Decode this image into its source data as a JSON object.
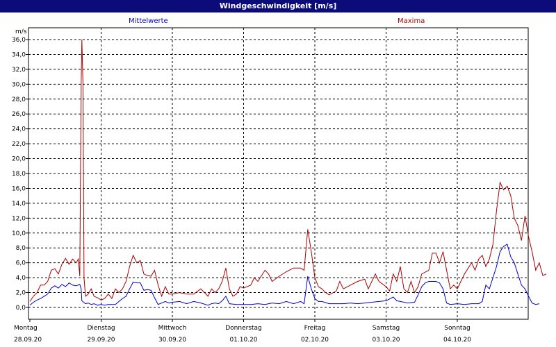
{
  "window": {
    "title": "Windgeschwindigkeit [m/s]"
  },
  "chart_data": {
    "type": "line",
    "title": "Windgeschwindigkeit [m/s]",
    "ylabel": "m/s",
    "ylim": [
      -1,
      37
    ],
    "yticks": [
      "0,0",
      "2,0",
      "4,0",
      "6,0",
      "8,0",
      "10,0",
      "12,0",
      "14,0",
      "16,0",
      "18,0",
      "20,0",
      "22,0",
      "24,0",
      "26,0",
      "28,0",
      "30,0",
      "32,0",
      "34,0",
      "36,0"
    ],
    "ytick_values": [
      0,
      2,
      4,
      6,
      8,
      10,
      12,
      14,
      16,
      18,
      20,
      22,
      24,
      26,
      28,
      30,
      32,
      34,
      36
    ],
    "xlim": [
      0,
      7
    ],
    "x_unit": "days since 28.09.20 00:00",
    "days": [
      {
        "weekday": "Montag",
        "date": "28.09.20"
      },
      {
        "weekday": "Dienstag",
        "date": "29.09.20"
      },
      {
        "weekday": "Mittwoch",
        "date": "30.09.20"
      },
      {
        "weekday": "Donnerstag",
        "date": "01.10.20"
      },
      {
        "weekday": "Freitag",
        "date": "02.10.20"
      },
      {
        "weekday": "Samstag",
        "date": "03.10.20"
      },
      {
        "weekday": "Sonntag",
        "date": "04.10.20"
      }
    ],
    "grid": true,
    "series": [
      {
        "name": "Mittelwerte",
        "color": "#0000cc",
        "points": [
          [
            0,
            0.3
          ],
          [
            0.05,
            0.7
          ],
          [
            0.1,
            1.0
          ],
          [
            0.15,
            1.2
          ],
          [
            0.2,
            1.5
          ],
          [
            0.25,
            1.8
          ],
          [
            0.3,
            2.6
          ],
          [
            0.35,
            2.9
          ],
          [
            0.4,
            2.6
          ],
          [
            0.45,
            3.1
          ],
          [
            0.5,
            2.8
          ],
          [
            0.55,
            3.3
          ],
          [
            0.6,
            3.0
          ],
          [
            0.65,
            2.9
          ],
          [
            0.7,
            3.1
          ],
          [
            0.72,
            2.5
          ],
          [
            0.73,
            0.9
          ],
          [
            0.78,
            0.5
          ],
          [
            0.82,
            0.6
          ],
          [
            0.86,
            0.4
          ],
          [
            0.9,
            0.5
          ],
          [
            0.95,
            0.3
          ],
          [
            1.0,
            0.4
          ],
          [
            1.05,
            0.3
          ],
          [
            1.1,
            0.4
          ],
          [
            1.2,
            0.4
          ],
          [
            1.25,
            0.8
          ],
          [
            1.3,
            1.2
          ],
          [
            1.35,
            1.5
          ],
          [
            1.4,
            2.5
          ],
          [
            1.45,
            3.4
          ],
          [
            1.5,
            3.3
          ],
          [
            1.55,
            3.3
          ],
          [
            1.6,
            2.3
          ],
          [
            1.65,
            2.4
          ],
          [
            1.7,
            2.3
          ],
          [
            1.75,
            1.3
          ],
          [
            1.8,
            0.4
          ],
          [
            1.85,
            0.6
          ],
          [
            1.9,
            0.8
          ],
          [
            1.95,
            0.6
          ],
          [
            2.0,
            0.7
          ],
          [
            2.1,
            0.8
          ],
          [
            2.2,
            0.5
          ],
          [
            2.3,
            0.8
          ],
          [
            2.4,
            0.6
          ],
          [
            2.5,
            0.3
          ],
          [
            2.55,
            0.5
          ],
          [
            2.6,
            0.6
          ],
          [
            2.65,
            0.5
          ],
          [
            2.7,
            0.9
          ],
          [
            2.75,
            1.5
          ],
          [
            2.8,
            0.5
          ],
          [
            2.9,
            0.4
          ],
          [
            3.0,
            0.4
          ],
          [
            3.1,
            0.4
          ],
          [
            3.2,
            0.5
          ],
          [
            3.3,
            0.4
          ],
          [
            3.4,
            0.6
          ],
          [
            3.5,
            0.5
          ],
          [
            3.6,
            0.8
          ],
          [
            3.7,
            0.5
          ],
          [
            3.8,
            0.8
          ],
          [
            3.85,
            0.5
          ],
          [
            3.9,
            4.2
          ],
          [
            3.95,
            2.5
          ],
          [
            4.0,
            1.2
          ],
          [
            4.05,
            0.8
          ],
          [
            4.1,
            0.8
          ],
          [
            4.2,
            0.5
          ],
          [
            4.3,
            0.5
          ],
          [
            4.4,
            0.5
          ],
          [
            4.5,
            0.6
          ],
          [
            4.6,
            0.5
          ],
          [
            4.7,
            0.6
          ],
          [
            4.8,
            0.7
          ],
          [
            4.9,
            0.8
          ],
          [
            5.0,
            0.9
          ],
          [
            5.1,
            1.4
          ],
          [
            5.15,
            0.9
          ],
          [
            5.2,
            0.8
          ],
          [
            5.3,
            0.6
          ],
          [
            5.4,
            0.7
          ],
          [
            5.45,
            1.7
          ],
          [
            5.5,
            2.8
          ],
          [
            5.55,
            3.3
          ],
          [
            5.6,
            3.5
          ],
          [
            5.7,
            3.5
          ],
          [
            5.75,
            3.3
          ],
          [
            5.8,
            2.5
          ],
          [
            5.85,
            0.6
          ],
          [
            5.9,
            0.4
          ],
          [
            6.0,
            0.5
          ],
          [
            6.1,
            0.4
          ],
          [
            6.2,
            0.5
          ],
          [
            6.3,
            0.5
          ],
          [
            6.35,
            0.8
          ],
          [
            6.4,
            3.0
          ],
          [
            6.45,
            2.5
          ],
          [
            6.5,
            4.0
          ],
          [
            6.55,
            5.5
          ],
          [
            6.6,
            7.5
          ],
          [
            6.65,
            8.2
          ],
          [
            6.7,
            8.5
          ],
          [
            6.75,
            6.8
          ],
          [
            6.8,
            6.0
          ],
          [
            6.85,
            4.5
          ],
          [
            6.9,
            3.0
          ],
          [
            6.95,
            2.5
          ],
          [
            7.0,
            1.5
          ],
          [
            7.05,
            0.6
          ],
          [
            7.1,
            0.4
          ],
          [
            7.15,
            0.5
          ]
        ]
      },
      {
        "name": "Maxima",
        "color": "#aa0000",
        "points": [
          [
            0,
            0.8
          ],
          [
            0.05,
            1.5
          ],
          [
            0.1,
            2.0
          ],
          [
            0.15,
            3.0
          ],
          [
            0.2,
            3.0
          ],
          [
            0.25,
            3.5
          ],
          [
            0.3,
            5.0
          ],
          [
            0.35,
            5.2
          ],
          [
            0.4,
            4.5
          ],
          [
            0.45,
            5.8
          ],
          [
            0.5,
            6.6
          ],
          [
            0.55,
            5.8
          ],
          [
            0.6,
            6.5
          ],
          [
            0.65,
            6.0
          ],
          [
            0.68,
            6.5
          ],
          [
            0.7,
            4.2
          ],
          [
            0.72,
            30.0
          ],
          [
            0.73,
            36.0
          ],
          [
            0.745,
            30.0
          ],
          [
            0.76,
            4.0
          ],
          [
            0.78,
            1.5
          ],
          [
            0.82,
            1.8
          ],
          [
            0.86,
            2.5
          ],
          [
            0.9,
            1.5
          ],
          [
            0.95,
            1.3
          ],
          [
            1.0,
            1.0
          ],
          [
            1.05,
            1.2
          ],
          [
            1.1,
            1.8
          ],
          [
            1.15,
            1.2
          ],
          [
            1.2,
            2.5
          ],
          [
            1.25,
            2.0
          ],
          [
            1.3,
            2.5
          ],
          [
            1.35,
            3.5
          ],
          [
            1.4,
            5.5
          ],
          [
            1.45,
            7.0
          ],
          [
            1.5,
            6.0
          ],
          [
            1.55,
            6.3
          ],
          [
            1.6,
            4.5
          ],
          [
            1.65,
            4.3
          ],
          [
            1.7,
            4.2
          ],
          [
            1.75,
            5.0
          ],
          [
            1.8,
            3.0
          ],
          [
            1.85,
            1.5
          ],
          [
            1.9,
            2.8
          ],
          [
            1.95,
            1.8
          ],
          [
            2.0,
            1.8
          ],
          [
            2.1,
            2.0
          ],
          [
            2.2,
            1.8
          ],
          [
            2.3,
            1.8
          ],
          [
            2.4,
            2.5
          ],
          [
            2.5,
            1.5
          ],
          [
            2.55,
            2.5
          ],
          [
            2.6,
            2.0
          ],
          [
            2.65,
            2.5
          ],
          [
            2.7,
            3.5
          ],
          [
            2.75,
            5.3
          ],
          [
            2.8,
            2.5
          ],
          [
            2.85,
            1.5
          ],
          [
            2.9,
            1.8
          ],
          [
            2.95,
            2.8
          ],
          [
            3.0,
            2.6
          ],
          [
            3.1,
            3.0
          ],
          [
            3.15,
            4.0
          ],
          [
            3.2,
            3.5
          ],
          [
            3.3,
            5.0
          ],
          [
            3.35,
            4.5
          ],
          [
            3.4,
            3.5
          ],
          [
            3.5,
            4.2
          ],
          [
            3.6,
            4.8
          ],
          [
            3.7,
            5.3
          ],
          [
            3.8,
            5.3
          ],
          [
            3.85,
            5.0
          ],
          [
            3.9,
            10.5
          ],
          [
            3.95,
            7.5
          ],
          [
            4.0,
            4.0
          ],
          [
            4.05,
            2.8
          ],
          [
            4.1,
            2.5
          ],
          [
            4.15,
            2.0
          ],
          [
            4.2,
            1.7
          ],
          [
            4.3,
            2.2
          ],
          [
            4.35,
            3.5
          ],
          [
            4.4,
            2.5
          ],
          [
            4.5,
            3.0
          ],
          [
            4.6,
            3.5
          ],
          [
            4.7,
            3.8
          ],
          [
            4.75,
            2.5
          ],
          [
            4.8,
            3.5
          ],
          [
            4.85,
            4.5
          ],
          [
            4.9,
            3.5
          ],
          [
            5.0,
            2.8
          ],
          [
            5.05,
            2.2
          ],
          [
            5.1,
            4.5
          ],
          [
            5.15,
            3.5
          ],
          [
            5.2,
            5.5
          ],
          [
            5.25,
            2.5
          ],
          [
            5.3,
            2.0
          ],
          [
            5.35,
            3.5
          ],
          [
            5.4,
            2.0
          ],
          [
            5.45,
            2.8
          ],
          [
            5.5,
            4.5
          ],
          [
            5.6,
            5.0
          ],
          [
            5.65,
            7.3
          ],
          [
            5.7,
            7.3
          ],
          [
            5.75,
            6.0
          ],
          [
            5.8,
            7.5
          ],
          [
            5.85,
            5.0
          ],
          [
            5.9,
            2.5
          ],
          [
            5.95,
            3.0
          ],
          [
            6.0,
            2.5
          ],
          [
            6.05,
            3.5
          ],
          [
            6.1,
            4.5
          ],
          [
            6.2,
            6.0
          ],
          [
            6.25,
            5.0
          ],
          [
            6.3,
            6.5
          ],
          [
            6.35,
            7.0
          ],
          [
            6.4,
            5.5
          ],
          [
            6.45,
            6.5
          ],
          [
            6.5,
            8.5
          ],
          [
            6.55,
            13.0
          ],
          [
            6.6,
            16.8
          ],
          [
            6.65,
            15.8
          ],
          [
            6.7,
            16.3
          ],
          [
            6.75,
            15.0
          ],
          [
            6.8,
            12.0
          ],
          [
            6.85,
            11.0
          ],
          [
            6.9,
            9.0
          ],
          [
            6.95,
            12.3
          ],
          [
            7.0,
            9.5
          ],
          [
            7.05,
            7.5
          ],
          [
            7.1,
            5.0
          ],
          [
            7.15,
            6.0
          ],
          [
            7.2,
            4.3
          ],
          [
            7.25,
            4.5
          ]
        ]
      }
    ]
  }
}
